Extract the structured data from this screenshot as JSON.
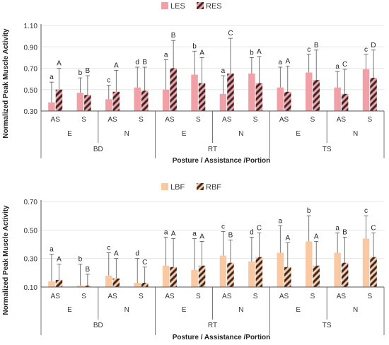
{
  "colors": {
    "left_top": "#f0a0a6",
    "left_bottom": "#f8c9a2",
    "hatch_fg": "#3a2a2a",
    "hatch_bg_top": "#f0a0a6",
    "hatch_bg_bottom": "#f8c9a2",
    "axis": "#555555",
    "grid": "#e6e6e6",
    "error": "#555555"
  },
  "chart_data": [
    {
      "type": "bar",
      "ylabel": "Normalized Peak Muscle Activity",
      "xlabel": "Posture / Assistance /Portion",
      "ylim": [
        0.3,
        1.1
      ],
      "yticks": [
        "0.30",
        "0.50",
        "0.70",
        "0.90",
        "1.10"
      ],
      "legend": [
        "LES",
        "RES"
      ],
      "legend_position": "top-center",
      "grid": true,
      "categories": [
        "AS",
        "S",
        "AS",
        "S",
        "AS",
        "S",
        "AS",
        "S",
        "AS",
        "S",
        "AS",
        "S"
      ],
      "portion_labels": [
        "E",
        "N",
        "E",
        "N",
        "E",
        "N"
      ],
      "posture_labels": [
        "BD",
        "RT",
        "TS"
      ],
      "series": [
        {
          "name": "LES",
          "values": [
            0.38,
            0.47,
            0.41,
            0.52,
            0.5,
            0.64,
            0.46,
            0.65,
            0.52,
            0.66,
            0.52,
            0.69
          ],
          "errors": [
            0.19,
            0.14,
            0.13,
            0.19,
            0.28,
            0.22,
            0.17,
            0.15,
            0.19,
            0.17,
            0.15,
            0.14
          ],
          "letters": [
            "a",
            "b",
            "c",
            "d",
            "a",
            "b",
            "a",
            "b",
            "a",
            "c",
            "a",
            "c"
          ]
        },
        {
          "name": "RES",
          "values": [
            0.5,
            0.45,
            0.48,
            0.49,
            0.7,
            0.56,
            0.65,
            0.56,
            0.48,
            0.59,
            0.46,
            0.61
          ],
          "errors": [
            0.2,
            0.18,
            0.2,
            0.22,
            0.26,
            0.24,
            0.33,
            0.25,
            0.24,
            0.28,
            0.23,
            0.26
          ],
          "letters": [
            "A",
            "B",
            "A",
            "B",
            "B",
            "A",
            "C",
            "A",
            "A",
            "B",
            "C",
            "D"
          ]
        }
      ]
    },
    {
      "type": "bar",
      "ylabel": "Normalized Peak Muscle Activity",
      "xlabel": "Posture / Assistance /Portion",
      "ylim": [
        0.1,
        0.7
      ],
      "yticks": [
        "0.10",
        "0.30",
        "0.50",
        "0.70"
      ],
      "legend": [
        "LBF",
        "RBF"
      ],
      "legend_position": "top-center",
      "grid": true,
      "categories": [
        "AS",
        "S",
        "AS",
        "S",
        "AS",
        "S",
        "AS",
        "S",
        "AS",
        "S",
        "AS",
        "S"
      ],
      "portion_labels": [
        "E",
        "N",
        "E",
        "N",
        "E",
        "N"
      ],
      "posture_labels": [
        "BD",
        "RT",
        "TS"
      ],
      "series": [
        {
          "name": "LBF",
          "values": [
            0.14,
            0.11,
            0.18,
            0.13,
            0.25,
            0.22,
            0.32,
            0.28,
            0.34,
            0.42,
            0.34,
            0.44
          ],
          "errors": [
            0.19,
            0.15,
            0.16,
            0.17,
            0.2,
            0.22,
            0.17,
            0.17,
            0.19,
            0.18,
            0.14,
            0.16
          ],
          "letters": [
            "a",
            "b",
            "c",
            "d",
            "a",
            "a",
            "c",
            "d",
            "a",
            "b",
            "a",
            "c"
          ]
        },
        {
          "name": "RBF",
          "values": [
            0.15,
            0.11,
            0.16,
            0.13,
            0.24,
            0.25,
            0.27,
            0.31,
            0.24,
            0.25,
            0.27,
            0.31
          ],
          "errors": [
            0.11,
            0.08,
            0.14,
            0.11,
            0.2,
            0.17,
            0.16,
            0.17,
            0.17,
            0.17,
            0.18,
            0.17
          ],
          "letters": [
            "A",
            "B",
            "A",
            "C",
            "A",
            "A",
            "B",
            "C",
            "A",
            "A",
            "B",
            "C"
          ]
        }
      ]
    }
  ]
}
